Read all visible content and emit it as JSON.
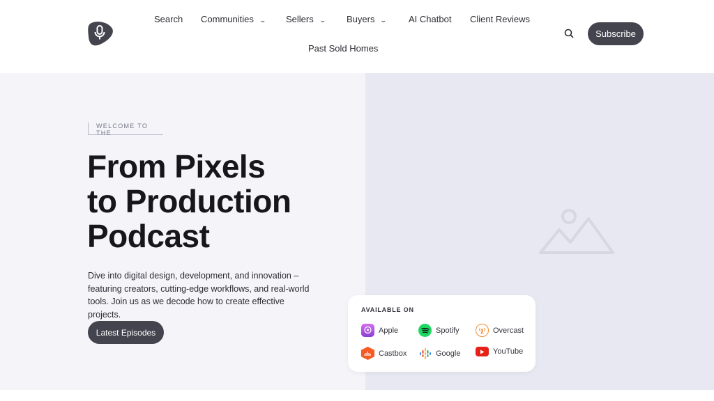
{
  "header": {
    "logo_icon": "microphone-icon",
    "nav": [
      {
        "label": "Search",
        "dropdown": false
      },
      {
        "label": "Communities",
        "dropdown": true
      },
      {
        "label": "Sellers",
        "dropdown": true
      },
      {
        "label": "Buyers",
        "dropdown": true
      },
      {
        "label": "AI Chatbot",
        "dropdown": false
      },
      {
        "label": "Client Reviews",
        "dropdown": false
      },
      {
        "label": "Past Sold Homes",
        "dropdown": false
      }
    ],
    "chevron": "⌄",
    "search_icon": "search-icon",
    "subscribe_label": "Subscribe"
  },
  "hero": {
    "eyebrow": "WELCOME TO THE",
    "title_lines": [
      "From Pixels",
      "to Production",
      "Podcast"
    ],
    "description": "Dive into digital design, development, and innovation – featuring creators, cutting-edge workflows, and real-world tools. Join us as we decode how to create effective projects.",
    "cta_label": "Latest Episodes",
    "image_placeholder_icon": "image-placeholder-icon"
  },
  "available": {
    "heading": "AVAILABLE ON",
    "platforms": [
      {
        "label": "Apple",
        "icon": "apple-podcasts-icon",
        "color": "#b150e2"
      },
      {
        "label": "Spotify",
        "icon": "spotify-icon",
        "color": "#1ed760"
      },
      {
        "label": "Overcast",
        "icon": "overcast-icon",
        "color": "#f28b30"
      },
      {
        "label": "Castbox",
        "icon": "castbox-icon",
        "color": "#f55b23"
      },
      {
        "label": "Google",
        "icon": "google-podcasts-icon",
        "color": "#4285f4"
      },
      {
        "label": "YouTube",
        "icon": "youtube-icon",
        "color": "#e62117"
      }
    ]
  },
  "colors": {
    "button": "#44444f",
    "hero_left_bg": "#f4f4f9",
    "hero_right_bg": "#e8e8f2"
  }
}
